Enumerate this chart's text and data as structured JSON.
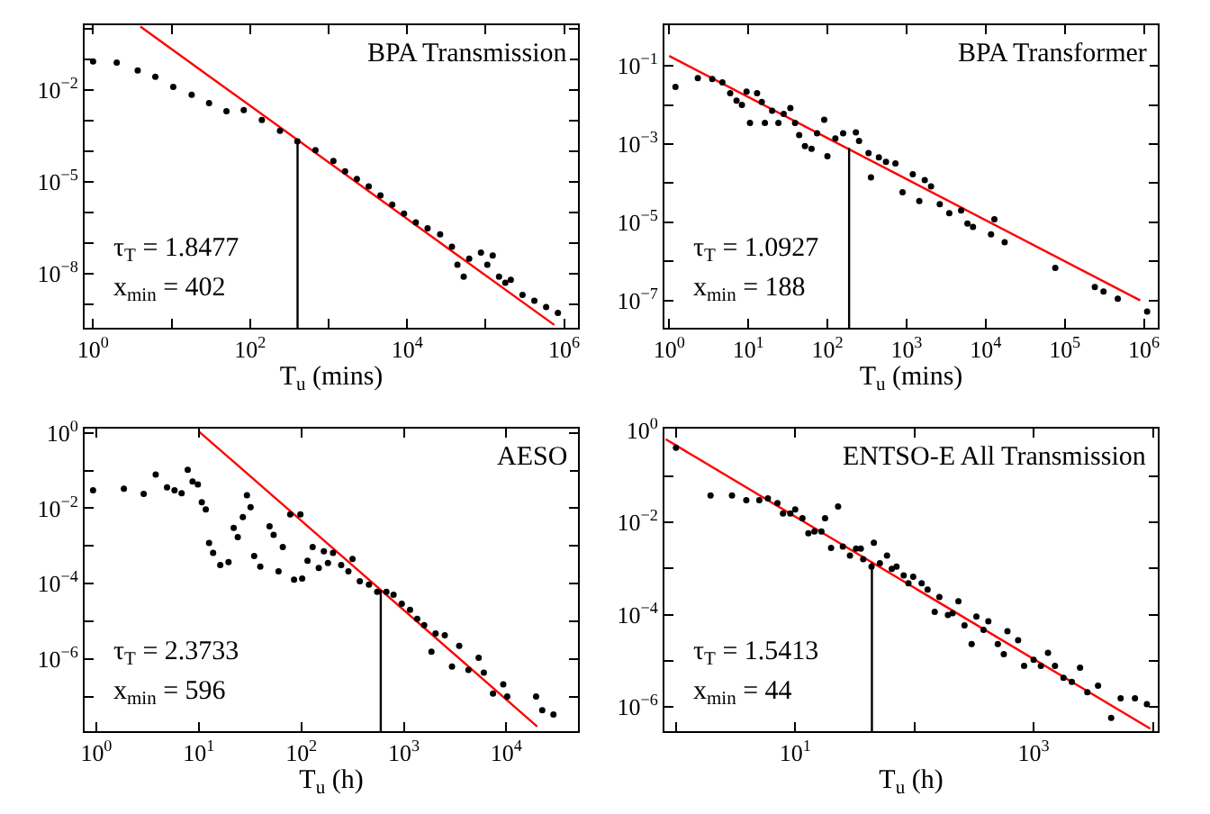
{
  "chart_data": [
    {
      "type": "scatter",
      "title": "BPA Transmission",
      "xlabel": "T$_{u}$ (mins)",
      "annotations": [
        "τ$_{T}$ = 1.8477",
        "x$_{min}$ = 402"
      ],
      "log": "xy",
      "grid": false,
      "marker": "circle",
      "xlim": [
        0.78,
        1500000
      ],
      "ylim": [
        1.7e-10,
        1.3
      ],
      "xticks": [
        {
          "value": 1,
          "label": "10$^{0}$"
        },
        {
          "value": 10,
          "label": null
        },
        {
          "value": 100,
          "label": "10$^{2}$"
        },
        {
          "value": 1000,
          "label": null
        },
        {
          "value": 10000,
          "label": "10$^{4}$"
        },
        {
          "value": 100000,
          "label": null
        },
        {
          "value": 1000000,
          "label": "10$^{6}$"
        }
      ],
      "yticks": [
        {
          "value": 1,
          "label": null
        },
        {
          "value": 0.1,
          "label": null
        },
        {
          "value": 0.01,
          "label": "10$^{−2}$"
        },
        {
          "value": 0.001,
          "label": null
        },
        {
          "value": 0.0001,
          "label": null
        },
        {
          "value": 1e-05,
          "label": "10$^{−5}$"
        },
        {
          "value": 1e-06,
          "label": null
        },
        {
          "value": 1e-07,
          "label": null
        },
        {
          "value": 1e-08,
          "label": "10$^{−8}$"
        },
        {
          "value": 1e-09,
          "label": null
        }
      ],
      "series": [
        {
          "color": "#000000",
          "x": [
            1,
            2,
            3.7,
            6.2,
            10.5,
            18,
            30,
            50,
            83,
            141,
            240,
            400,
            680,
            1150,
            1620,
            2290,
            3240,
            4570,
            6460,
            9120,
            12900,
            18200,
            26300,
            37200,
            43700,
            52500,
            61700,
            87100,
            105000,
            123000,
            148000,
            178000,
            209000,
            295000,
            417000,
            589000,
            832000
          ],
          "values": [
            0.085,
            0.078,
            0.043,
            0.027,
            0.0126,
            0.0069,
            0.0037,
            0.002,
            0.0022,
            0.00105,
            0.00046,
            0.00021,
            0.000107,
            4.8e-05,
            2.2e-05,
            1.23e-05,
            7.1e-06,
            3.6e-06,
            1.8e-06,
            9.1e-07,
            4.7e-07,
            3e-07,
            1.9e-07,
            7.6e-08,
            1.95e-08,
            7.9e-09,
            3.1e-08,
            4.9e-08,
            1.95e-08,
            3.9e-08,
            7.9e-09,
            5e-09,
            6.3e-09,
            2e-09,
            1.3e-09,
            8.1e-10,
            5.2e-10
          ]
        },
        {
          "type": "line",
          "marker": "none",
          "color": "#ff0000",
          "x": [
            4,
            750000
          ],
          "values": [
            1.17,
            2.1e-10
          ]
        },
        {
          "type": "line",
          "marker": "none",
          "color": "#000000",
          "x": [
            402,
            402
          ],
          "values": [
            1.7e-10,
            0.00023
          ]
        }
      ]
    },
    {
      "type": "scatter",
      "title": "BPA Transformer",
      "xlabel": "T$_{u}$ (mins)",
      "annotations": [
        "τ$_{T}$ = 1.0927",
        "x$_{min}$ = 188"
      ],
      "log": "xy",
      "grid": false,
      "marker": "circle",
      "xlim": [
        0.87,
        1500000
      ],
      "ylim": [
        2e-08,
        1.1
      ],
      "xticks": [
        {
          "value": 1,
          "label": "10$^{0}$"
        },
        {
          "value": 10,
          "label": "10$^{1}$"
        },
        {
          "value": 100,
          "label": "10$^{2}$"
        },
        {
          "value": 1000,
          "label": "10$^{3}$"
        },
        {
          "value": 10000,
          "label": "10$^{4}$"
        },
        {
          "value": 100000,
          "label": "10$^{5}$"
        },
        {
          "value": 1000000,
          "label": "10$^{6}$"
        }
      ],
      "yticks": [
        {
          "value": 1,
          "label": null
        },
        {
          "value": 0.1,
          "label": "10$^{−1}$"
        },
        {
          "value": 0.01,
          "label": null
        },
        {
          "value": 0.001,
          "label": "10$^{−3}$"
        },
        {
          "value": 0.0001,
          "label": null
        },
        {
          "value": 1e-05,
          "label": "10$^{−5}$"
        },
        {
          "value": 1e-06,
          "label": null
        },
        {
          "value": 1e-07,
          "label": "10$^{−7}$"
        }
      ],
      "series": [
        {
          "color": "#000000",
          "x": [
            1.2,
            2.3,
            3.5,
            4.7,
            5.9,
            7.1,
            8.3,
            9.5,
            10.5,
            12.9,
            14.8,
            16.2,
            20,
            24,
            28,
            34,
            39,
            44,
            52,
            63,
            74,
            91,
            100,
            126,
            158,
            229,
            251,
            331,
            355,
            447,
            550,
            724,
            891,
            1200,
            1450,
            1700,
            2040,
            2630,
            3470,
            4900,
            5890,
            6920,
            11700,
            12900,
            17400,
            75900,
            240000,
            309000,
            468000,
            1100000
          ],
          "values": [
            0.029,
            0.049,
            0.046,
            0.038,
            0.02,
            0.013,
            0.01,
            0.022,
            0.0035,
            0.02,
            0.012,
            0.0035,
            0.0071,
            0.0035,
            0.0059,
            0.0083,
            0.0035,
            0.0017,
            0.00089,
            0.00076,
            0.0019,
            0.0042,
            0.00049,
            0.0014,
            0.0019,
            0.002,
            0.0012,
            0.00059,
            0.00014,
            0.00046,
            0.00035,
            0.00032,
            5.9e-05,
            0.00017,
            3.5e-05,
            0.00012,
            8.3e-05,
            2.9e-05,
            1.7e-05,
            2e-05,
            9.3e-06,
            7.6e-06,
            4.9e-06,
            1.2e-05,
            3.1e-06,
            6.8e-07,
            2.2e-07,
            1.7e-07,
            1.1e-07,
            5.2e-08
          ]
        },
        {
          "type": "line",
          "marker": "none",
          "color": "#ff0000",
          "x": [
            1,
            900000
          ],
          "values": [
            0.18,
            1e-07
          ]
        },
        {
          "type": "line",
          "marker": "none",
          "color": "#000000",
          "x": [
            188,
            188
          ],
          "values": [
            2e-08,
            0.0008
          ]
        }
      ]
    },
    {
      "type": "scatter",
      "title": "AESO",
      "xlabel": "T$_{u}$ (h)",
      "annotations": [
        "τ$_{T}$ = 2.3733",
        "x$_{min}$ = 596"
      ],
      "log": "xy",
      "grid": false,
      "marker": "circle",
      "xlim": [
        0.77,
        50000
      ],
      "ylim": [
        1.2e-08,
        1.3
      ],
      "xticks": [
        {
          "value": 1,
          "label": "10$^{0}$"
        },
        {
          "value": 10,
          "label": "10$^{1}$"
        },
        {
          "value": 100,
          "label": "10$^{2}$"
        },
        {
          "value": 1000,
          "label": "10$^{3}$"
        },
        {
          "value": 10000,
          "label": "10$^{4}$"
        }
      ],
      "yticks": [
        {
          "value": 1,
          "label": "10$^{0}$"
        },
        {
          "value": 0.1,
          "label": null
        },
        {
          "value": 0.01,
          "label": "10$^{−2}$"
        },
        {
          "value": 0.001,
          "label": null
        },
        {
          "value": 0.0001,
          "label": "10$^{−4}$"
        },
        {
          "value": 1e-05,
          "label": null
        },
        {
          "value": 1e-06,
          "label": "10$^{−6}$"
        },
        {
          "value": 1e-07,
          "label": null
        }
      ],
      "series": [
        {
          "color": "#000000",
          "x": [
            0.93,
            1.86,
            2.9,
            3.8,
            4.9,
            5.8,
            6.8,
            7.8,
            8.7,
            9.8,
            10.7,
            11.7,
            12.6,
            13.8,
            16.2,
            19.5,
            21.9,
            24,
            26.9,
            29.5,
            32,
            34.7,
            39.8,
            49,
            53.7,
            60,
            66,
            78,
            85,
            98,
            102,
            115,
            129,
            148,
            166,
            182,
            204,
            245,
            288,
            316,
            372,
            457,
            550,
            676,
            794,
            955,
            1150,
            1350,
            1580,
            1860,
            2040,
            2510,
            2950,
            3470,
            4270,
            5370,
            6030,
            7410,
            9330,
            10200,
            19500,
            22400,
            28800
          ],
          "values": [
            0.03,
            0.033,
            0.024,
            0.078,
            0.036,
            0.03,
            0.025,
            0.105,
            0.051,
            0.043,
            0.0145,
            0.0093,
            0.0012,
            0.00065,
            0.00031,
            0.00037,
            0.003,
            0.0017,
            0.0058,
            0.022,
            0.0107,
            0.00054,
            0.00028,
            0.0033,
            0.00195,
            0.00021,
            0.00093,
            0.0069,
            0.000126,
            0.0069,
            0.000135,
            0.0004,
            0.00093,
            0.00026,
            0.00072,
            0.00035,
            0.00065,
            0.00031,
            0.00021,
            0.00045,
            0.000115,
            9.3e-05,
            6e-05,
            6e-05,
            5e-05,
            2.9e-05,
            2e-05,
            1.15e-05,
            7.9e-06,
            1.55e-06,
            4.7e-06,
            4.2e-06,
            6.2e-07,
            2.2e-06,
            5.1e-07,
            1.07e-06,
            4.3e-07,
            1.2e-07,
            2.1e-07,
            1e-07,
            1e-07,
            4.3e-08,
            3.3e-08
          ]
        },
        {
          "type": "line",
          "marker": "none",
          "color": "#ff0000",
          "x": [
            10,
            20000
          ],
          "values": [
            1.1,
            1.6e-08
          ]
        },
        {
          "type": "line",
          "marker": "none",
          "color": "#000000",
          "x": [
            596,
            596
          ],
          "values": [
            1.2e-08,
            6.8e-05
          ]
        }
      ]
    },
    {
      "type": "scatter",
      "title": "ENTSO-E All Transmission",
      "xlabel": "T$_{u}$ (h)",
      "annotations": [
        "τ$_{T}$ = 1.5413",
        "x$_{min}$ = 44"
      ],
      "log": "xy",
      "grid": false,
      "marker": "circle",
      "xlim": [
        0.8,
        11000
      ],
      "ylim": [
        3e-07,
        1.07
      ],
      "xticks": [
        {
          "value": 1,
          "label": null
        },
        {
          "value": 10,
          "label": "10$^{1}$"
        },
        {
          "value": 100,
          "label": null
        },
        {
          "value": 1000,
          "label": "10$^{3}$"
        },
        {
          "value": 10000,
          "label": null
        }
      ],
      "yticks": [
        {
          "value": 1,
          "label": "10$^{0}$"
        },
        {
          "value": 0.1,
          "label": null
        },
        {
          "value": 0.01,
          "label": "10$^{−2}$"
        },
        {
          "value": 0.001,
          "label": null
        },
        {
          "value": 0.0001,
          "label": "10$^{−4}$"
        },
        {
          "value": 1e-05,
          "label": null
        },
        {
          "value": 1e-06,
          "label": "10$^{−6}$"
        }
      ],
      "series": [
        {
          "color": "#000000",
          "x": [
            1,
            1.95,
            2.95,
            3.89,
            5.0,
            5.9,
            7.1,
            7.9,
            9.1,
            10,
            11.5,
            12.9,
            14.5,
            16.6,
            17.8,
            20,
            22.9,
            25.1,
            28.8,
            32.4,
            35.5,
            37.2,
            43.7,
            45.7,
            51.3,
            58.9,
            64.6,
            70.8,
            81.3,
            89.1,
            97.7,
            115,
            129,
            148,
            162,
            191,
            209,
            234,
            263,
            302,
            331,
            380,
            417,
            501,
            562,
            603,
            741,
            832,
            1000,
            1150,
            1320,
            1510,
            1780,
            2090,
            2450,
            2820,
            3470,
            4470,
            5370,
            7080,
            8910
          ],
          "values": [
            0.41,
            0.038,
            0.038,
            0.03,
            0.03,
            0.033,
            0.026,
            0.0155,
            0.0155,
            0.019,
            0.0123,
            0.0058,
            0.0063,
            0.0063,
            0.0123,
            0.0028,
            0.022,
            0.003,
            0.0019,
            0.0027,
            0.0027,
            0.0016,
            0.0011,
            0.0036,
            0.0013,
            0.0019,
            0.00098,
            0.0011,
            0.00071,
            0.00048,
            0.00066,
            0.00048,
            0.00035,
            0.000115,
            0.00024,
            9.8e-05,
            0.000107,
            0.000195,
            5.9e-05,
            2.3e-05,
            9.1e-05,
            4.7e-05,
            7.2e-05,
            2.3e-05,
            1.4e-05,
            4.4e-05,
            2.8e-05,
            7.8e-06,
            1.05e-05,
            7.8e-06,
            1.5e-05,
            7.8e-06,
            4.3e-06,
            3.5e-06,
            7.1e-06,
            2.1e-06,
            2.9e-06,
            5.8e-07,
            1.55e-06,
            1.55e-06,
            1.15e-06
          ]
        },
        {
          "type": "line",
          "marker": "none",
          "color": "#ff0000",
          "x": [
            0.82,
            9500
          ],
          "values": [
            0.63,
            3.4e-07
          ]
        },
        {
          "type": "line",
          "marker": "none",
          "color": "#000000",
          "x": [
            44,
            44
          ],
          "values": [
            3e-07,
            0.00135
          ]
        }
      ]
    }
  ]
}
